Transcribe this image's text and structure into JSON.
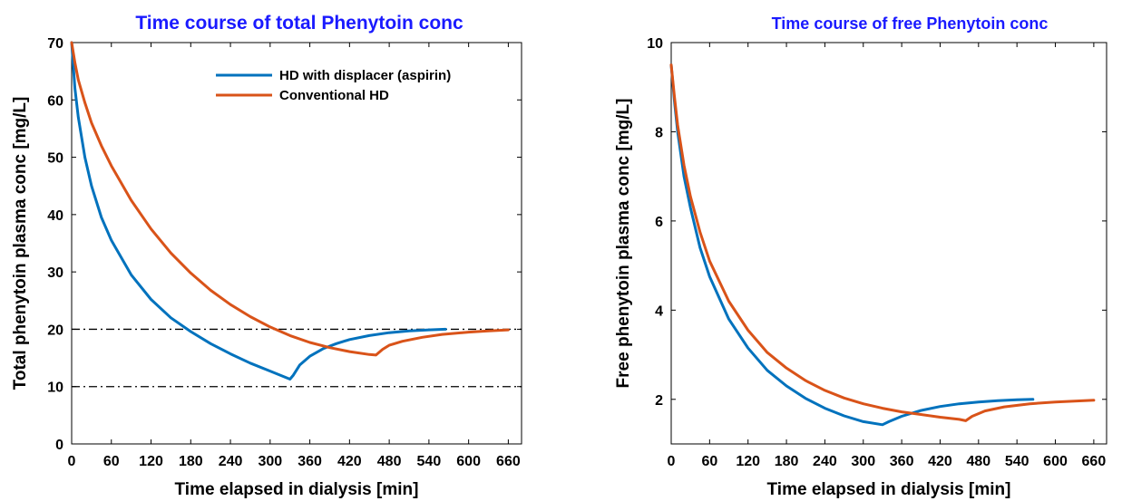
{
  "colors": {
    "series1": "#0072BD",
    "series2": "#D95319",
    "title": "#1a1aff"
  },
  "chart_data": [
    {
      "type": "line",
      "title": "Time course of total Phenytoin conc",
      "xlabel": "Time elapsed in dialysis [min]",
      "ylabel": "Total phenytoin plasma conc [mg/L]",
      "xlim": [
        0,
        680
      ],
      "ylim": [
        0,
        70
      ],
      "xticks": [
        0,
        60,
        120,
        180,
        240,
        300,
        360,
        420,
        480,
        540,
        600,
        660
      ],
      "yticks": [
        0,
        10,
        20,
        30,
        40,
        50,
        60,
        70
      ],
      "grid": false,
      "legend_position": "top-right",
      "reference_lines": [
        20,
        10
      ],
      "series": [
        {
          "name": "HD with displacer (aspirin)",
          "x": [
            0,
            5,
            10,
            20,
            30,
            45,
            60,
            90,
            120,
            150,
            180,
            210,
            240,
            270,
            300,
            330,
            335,
            345,
            360,
            380,
            400,
            420,
            450,
            480,
            510,
            540,
            565
          ],
          "y": [
            70,
            62,
            57,
            50,
            45,
            39.5,
            35.5,
            29.5,
            25.2,
            22,
            19.6,
            17.5,
            15.7,
            14.1,
            12.7,
            11.3,
            12.0,
            13.8,
            15.3,
            16.6,
            17.5,
            18.2,
            18.9,
            19.4,
            19.7,
            19.9,
            20.0
          ]
        },
        {
          "name": "Conventional HD",
          "x": [
            0,
            5,
            10,
            20,
            30,
            45,
            60,
            90,
            120,
            150,
            180,
            210,
            240,
            270,
            300,
            330,
            360,
            390,
            420,
            450,
            460,
            470,
            480,
            500,
            530,
            560,
            600,
            630,
            660
          ],
          "y": [
            70,
            66.5,
            63.5,
            59.5,
            56,
            52,
            48.5,
            42.5,
            37.5,
            33.3,
            29.8,
            26.8,
            24.3,
            22.2,
            20.4,
            18.9,
            17.7,
            16.8,
            16.1,
            15.6,
            15.5,
            16.5,
            17.2,
            17.9,
            18.6,
            19.1,
            19.5,
            19.7,
            19.9
          ]
        }
      ]
    },
    {
      "type": "line",
      "title": "Time course of free Phenytoin conc",
      "xlabel": "Time elapsed in dialysis [min]",
      "ylabel": "Free phenytoin plasma conc [mg/L]",
      "xlim": [
        0,
        680
      ],
      "ylim": [
        1,
        10
      ],
      "xticks": [
        0,
        60,
        120,
        180,
        240,
        300,
        360,
        420,
        480,
        540,
        600,
        660
      ],
      "yticks": [
        2,
        4,
        6,
        8,
        10
      ],
      "grid": false,
      "series": [
        {
          "name": "HD with displacer (aspirin)",
          "x": [
            0,
            5,
            10,
            20,
            30,
            45,
            60,
            90,
            120,
            150,
            180,
            210,
            240,
            270,
            300,
            330,
            340,
            360,
            390,
            420,
            450,
            480,
            510,
            540,
            565
          ],
          "y": [
            9.5,
            8.7,
            8.0,
            7.0,
            6.3,
            5.4,
            4.75,
            3.8,
            3.15,
            2.65,
            2.3,
            2.02,
            1.8,
            1.63,
            1.5,
            1.43,
            1.5,
            1.62,
            1.75,
            1.84,
            1.9,
            1.94,
            1.97,
            1.99,
            2.0
          ]
        },
        {
          "name": "Conventional HD",
          "x": [
            0,
            5,
            10,
            20,
            30,
            45,
            60,
            90,
            120,
            150,
            180,
            210,
            240,
            270,
            300,
            330,
            360,
            390,
            420,
            450,
            460,
            470,
            490,
            520,
            560,
            600,
            630,
            660
          ],
          "y": [
            9.5,
            8.8,
            8.15,
            7.25,
            6.55,
            5.75,
            5.1,
            4.2,
            3.55,
            3.05,
            2.7,
            2.42,
            2.2,
            2.03,
            1.9,
            1.8,
            1.72,
            1.66,
            1.6,
            1.55,
            1.52,
            1.62,
            1.74,
            1.83,
            1.9,
            1.94,
            1.96,
            1.98
          ]
        }
      ]
    }
  ]
}
